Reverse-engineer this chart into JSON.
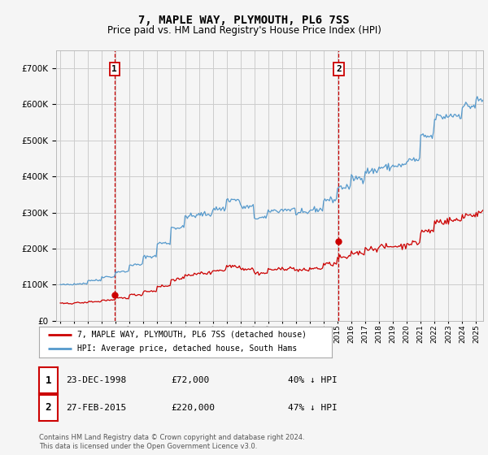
{
  "title": "7, MAPLE WAY, PLYMOUTH, PL6 7SS",
  "subtitle": "Price paid vs. HM Land Registry's House Price Index (HPI)",
  "property_label": "7, MAPLE WAY, PLYMOUTH, PL6 7SS (detached house)",
  "hpi_label": "HPI: Average price, detached house, South Hams",
  "transaction1_date": "23-DEC-1998",
  "transaction1_price": 72000,
  "transaction1_pct": "40% ↓ HPI",
  "transaction2_date": "27-FEB-2015",
  "transaction2_price": 220000,
  "transaction2_pct": "47% ↓ HPI",
  "footnote1": "Contains HM Land Registry data © Crown copyright and database right 2024.",
  "footnote2": "This data is licensed under the Open Government Licence v3.0.",
  "property_color": "#cc0000",
  "hpi_color": "#5599cc",
  "background_color": "#f5f5f5",
  "grid_color": "#cccccc",
  "ylim": [
    0,
    750000
  ],
  "yticks": [
    0,
    100000,
    200000,
    300000,
    400000,
    500000,
    600000,
    700000
  ],
  "hpi_annual": {
    "1995": 100000,
    "1996": 103000,
    "1997": 112000,
    "1998": 122000,
    "1999": 136000,
    "2000": 155000,
    "2001": 178000,
    "2002": 215000,
    "2003": 258000,
    "2004": 290000,
    "2005": 295000,
    "2006": 310000,
    "2007": 335000,
    "2008": 315000,
    "2009": 285000,
    "2010": 305000,
    "2011": 308000,
    "2012": 298000,
    "2013": 308000,
    "2014": 335000,
    "2015": 370000,
    "2016": 395000,
    "2017": 415000,
    "2018": 425000,
    "2019": 430000,
    "2020": 445000,
    "2021": 510000,
    "2022": 565000,
    "2023": 570000,
    "2024": 595000,
    "2025": 610000
  },
  "prop_annual": {
    "1995": 48000,
    "1996": 50000,
    "1997": 53000,
    "1998": 57000,
    "1999": 63000,
    "2000": 72000,
    "2001": 82000,
    "2002": 96000,
    "2003": 115000,
    "2004": 128000,
    "2005": 132000,
    "2006": 140000,
    "2007": 152000,
    "2008": 144000,
    "2009": 132000,
    "2010": 142000,
    "2011": 145000,
    "2012": 140000,
    "2013": 145000,
    "2014": 157000,
    "2015": 175000,
    "2016": 188000,
    "2017": 200000,
    "2018": 205000,
    "2019": 207000,
    "2020": 215000,
    "2021": 248000,
    "2022": 275000,
    "2023": 278000,
    "2024": 293000,
    "2025": 298000
  }
}
